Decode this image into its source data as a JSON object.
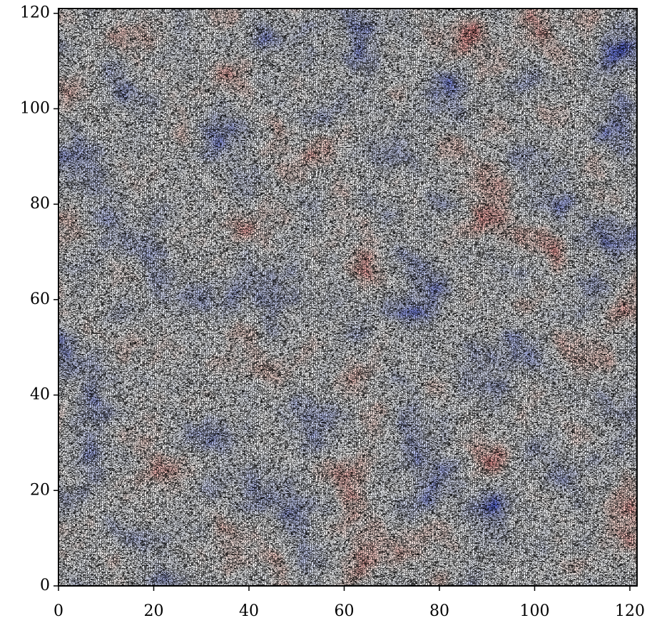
{
  "chart_data": {
    "type": "field",
    "xlim": [
      0,
      121.5
    ],
    "ylim": [
      0,
      121
    ],
    "xticks": [
      0,
      20,
      40,
      60,
      80,
      100,
      120
    ],
    "yticks": [
      0,
      20,
      40,
      60,
      80,
      100,
      120
    ]
  }
}
